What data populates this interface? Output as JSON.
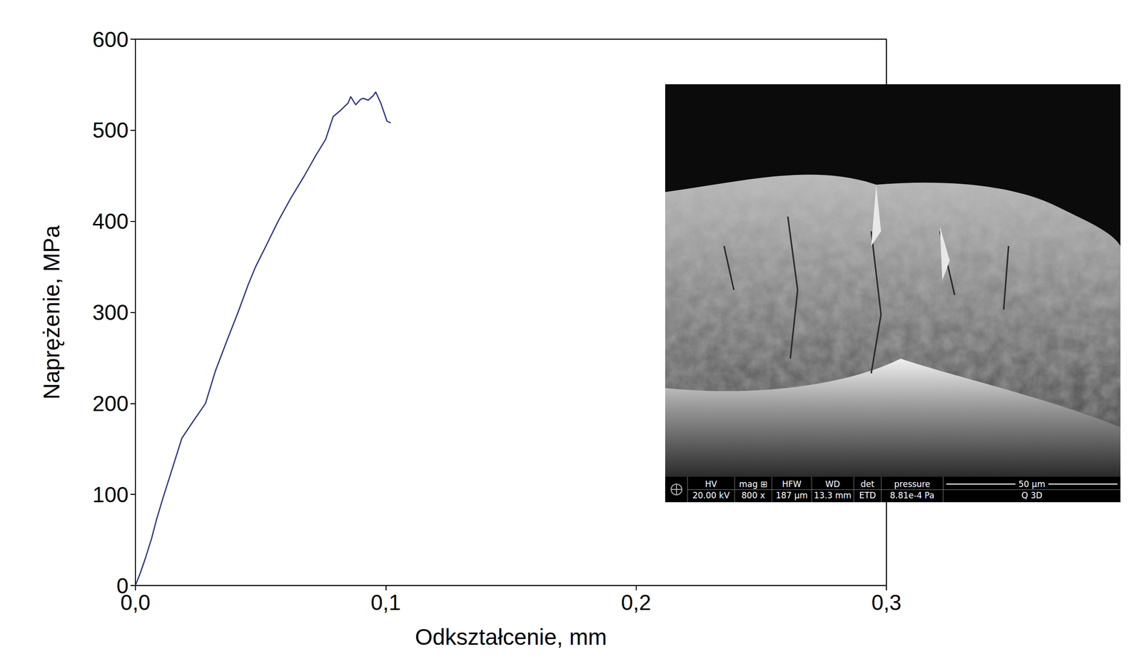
{
  "chart_data": {
    "type": "line",
    "x_label": "Odkształcenie, mm",
    "y_label": "Naprężenie, MPa",
    "xlim": [
      0,
      0.3
    ],
    "xticks": [
      {
        "value": 0,
        "label": "0,0"
      },
      {
        "value": 0.1,
        "label": "0,1"
      },
      {
        "value": 0.2,
        "label": "0,2"
      },
      {
        "value": 0.3,
        "label": "0,3"
      }
    ],
    "ylim": [
      0,
      600
    ],
    "yticks": [
      0,
      100,
      200,
      300,
      400,
      500,
      600
    ],
    "grid": false,
    "series": [
      {
        "name": "Naprężenie",
        "color": "#2b3590",
        "marker": "none",
        "line_style": "solid",
        "x": [
          0,
          0.002,
          0.004,
          0.0065,
          0.0084,
          0.011,
          0.014,
          0.0186,
          0.023,
          0.028,
          0.032,
          0.037,
          0.041,
          0.045,
          0.048,
          0.052,
          0.057,
          0.062,
          0.0675,
          0.072,
          0.076,
          0.079,
          0.082,
          0.085,
          0.086,
          0.088,
          0.09,
          0.091,
          0.093,
          0.095,
          0.096,
          0.098,
          0.1005,
          0.102
        ],
        "values": [
          0,
          14,
          30,
          52,
          72,
          96,
          122,
          162,
          180,
          200,
          236,
          272,
          300,
          330,
          350,
          372,
          400,
          425,
          450,
          472,
          490,
          515,
          522,
          530,
          537,
          528,
          534,
          535,
          533,
          538,
          542,
          530,
          510,
          508
        ]
      }
    ]
  },
  "inset": {
    "info_bar": [
      {
        "label": "HV",
        "value": "20.00 kV"
      },
      {
        "label": "mag ⊞",
        "value": "800 x"
      },
      {
        "label": "HFW",
        "value": "187 µm"
      },
      {
        "label": "WD",
        "value": "13.3 mm"
      },
      {
        "label": "det",
        "value": "ETD"
      },
      {
        "label": "pressure",
        "value": "8.81e-4 Pa"
      }
    ],
    "scale_bar": "50 µm",
    "footer": "Q 3D"
  }
}
